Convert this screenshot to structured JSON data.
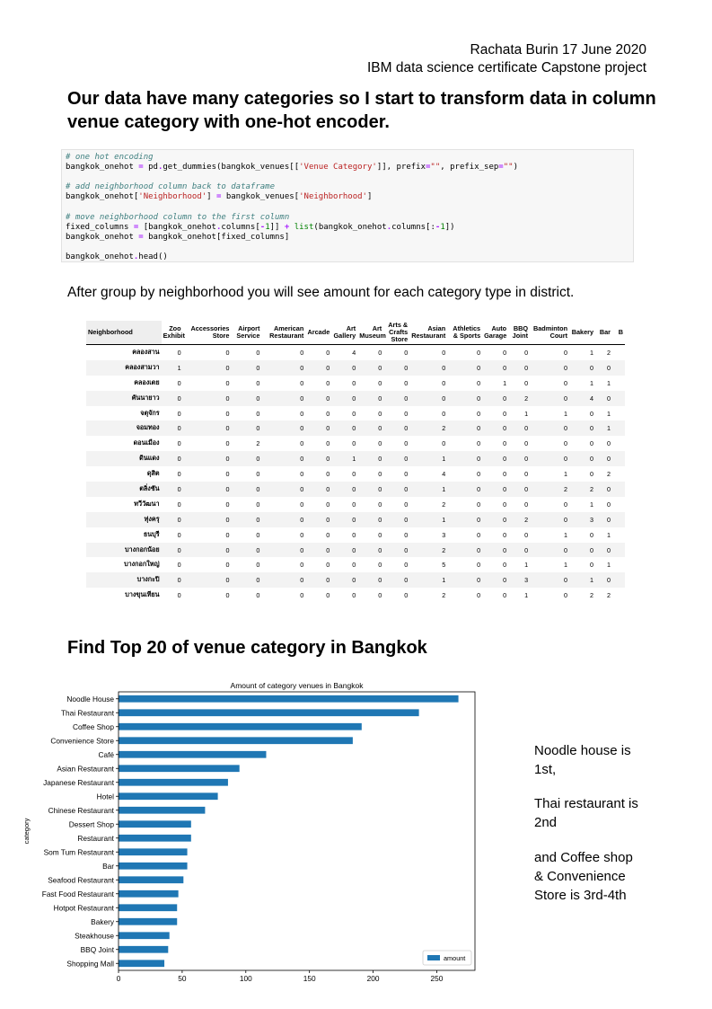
{
  "author": {
    "line1": "Rachata Burin 17 June 2020",
    "line2": "IBM data science certificate Capstone project"
  },
  "heading1": "Our data have many categories so I start to transform data in column venue category with one-hot encoder.",
  "code": {
    "comment1": "# one hot encoding",
    "comment2": "# add neighborhood column back to dataframe",
    "comment3": "# move neighborhood column to the first column"
  },
  "paragraph": "After group by neighborhood  you will see amount  for each category type in district.",
  "table": {
    "columns": [
      "Neighborhood",
      "Zoo Exhibit",
      "Accessories Store",
      "Airport Service",
      "American Restaurant",
      "Arcade",
      "Art Gallery",
      "Art Museum",
      "Arts & Crafts Store",
      "Asian Restaurant",
      "Athletics & Sports",
      "Auto Garage",
      "BBQ Joint",
      "Badminton Court",
      "Bakery",
      "Bar",
      "B"
    ],
    "rows": [
      [
        "คลองสาน",
        "0",
        "0",
        "0",
        "0",
        "0",
        "4",
        "0",
        "0",
        "0",
        "0",
        "0",
        "0",
        "0",
        "1",
        "2"
      ],
      [
        "คลองสามวา",
        "1",
        "0",
        "0",
        "0",
        "0",
        "0",
        "0",
        "0",
        "0",
        "0",
        "0",
        "0",
        "0",
        "0",
        "0"
      ],
      [
        "คลองเตย",
        "0",
        "0",
        "0",
        "0",
        "0",
        "0",
        "0",
        "0",
        "0",
        "0",
        "1",
        "0",
        "0",
        "1",
        "1"
      ],
      [
        "คันนายาว",
        "0",
        "0",
        "0",
        "0",
        "0",
        "0",
        "0",
        "0",
        "0",
        "0",
        "0",
        "2",
        "0",
        "4",
        "0"
      ],
      [
        "จตุจักร",
        "0",
        "0",
        "0",
        "0",
        "0",
        "0",
        "0",
        "0",
        "0",
        "0",
        "0",
        "1",
        "1",
        "0",
        "1"
      ],
      [
        "จอมทอง",
        "0",
        "0",
        "0",
        "0",
        "0",
        "0",
        "0",
        "0",
        "2",
        "0",
        "0",
        "0",
        "0",
        "0",
        "1"
      ],
      [
        "ดอนเมือง",
        "0",
        "0",
        "2",
        "0",
        "0",
        "0",
        "0",
        "0",
        "0",
        "0",
        "0",
        "0",
        "0",
        "0",
        "0"
      ],
      [
        "ดินแดง",
        "0",
        "0",
        "0",
        "0",
        "0",
        "1",
        "0",
        "0",
        "1",
        "0",
        "0",
        "0",
        "0",
        "0",
        "0"
      ],
      [
        "ดุสิต",
        "0",
        "0",
        "0",
        "0",
        "0",
        "0",
        "0",
        "0",
        "4",
        "0",
        "0",
        "0",
        "1",
        "0",
        "2"
      ],
      [
        "ตลิ่งชัน",
        "0",
        "0",
        "0",
        "0",
        "0",
        "0",
        "0",
        "0",
        "1",
        "0",
        "0",
        "0",
        "2",
        "2",
        "0"
      ],
      [
        "ทวีวัฒนา",
        "0",
        "0",
        "0",
        "0",
        "0",
        "0",
        "0",
        "0",
        "2",
        "0",
        "0",
        "0",
        "0",
        "1",
        "0"
      ],
      [
        "ทุ่งครุ",
        "0",
        "0",
        "0",
        "0",
        "0",
        "0",
        "0",
        "0",
        "1",
        "0",
        "0",
        "2",
        "0",
        "3",
        "0"
      ],
      [
        "ธนบุรี",
        "0",
        "0",
        "0",
        "0",
        "0",
        "0",
        "0",
        "0",
        "3",
        "0",
        "0",
        "0",
        "1",
        "0",
        "1"
      ],
      [
        "บางกอกน้อย",
        "0",
        "0",
        "0",
        "0",
        "0",
        "0",
        "0",
        "0",
        "2",
        "0",
        "0",
        "0",
        "0",
        "0",
        "0"
      ],
      [
        "บางกอกใหญ่",
        "0",
        "0",
        "0",
        "0",
        "0",
        "0",
        "0",
        "0",
        "5",
        "0",
        "0",
        "1",
        "1",
        "0",
        "1"
      ],
      [
        "บางกะปิ",
        "0",
        "0",
        "0",
        "0",
        "0",
        "0",
        "0",
        "0",
        "1",
        "0",
        "0",
        "3",
        "0",
        "1",
        "0"
      ],
      [
        "บางขุนเทียน",
        "0",
        "0",
        "0",
        "0",
        "0",
        "0",
        "0",
        "0",
        "2",
        "0",
        "0",
        "1",
        "0",
        "2",
        "2"
      ]
    ]
  },
  "heading2": "Find Top 20 of venue category in Bangkok",
  "chart_data": {
    "type": "bar",
    "orientation": "horizontal",
    "title": "Amount of category venues in Bangkok",
    "xlabel": "",
    "ylabel": "category",
    "categories": [
      "Noodle House",
      "Thai Restaurant",
      "Coffee Shop",
      "Convenience Store",
      "Café",
      "Asian Restaurant",
      "Japanese Restaurant",
      "Hotel",
      "Chinese Restaurant",
      "Dessert Shop",
      "Restaurant",
      "Som Tum Restaurant",
      "Bar",
      "Seafood Restaurant",
      "Fast Food Restaurant",
      "Hotpot Restaurant",
      "Bakery",
      "Steakhouse",
      "BBQ Joint",
      "Shopping Mall"
    ],
    "series": [
      {
        "name": "amount",
        "values": [
          267,
          236,
          191,
          184,
          116,
          95,
          86,
          78,
          68,
          57,
          57,
          54,
          54,
          51,
          47,
          46,
          46,
          40,
          39,
          36
        ]
      }
    ],
    "xlim": [
      0,
      280
    ],
    "xticks": [
      0,
      50,
      100,
      150,
      200,
      250
    ],
    "legend": "lower-right",
    "bar_color": "#1f77b4"
  },
  "notes": {
    "n1": "Noodle  house is 1st,",
    "n2": "Thai  restaurant is 2nd",
    "n3": "and Coffee shop  & Convenience Store  is 3rd-4th"
  }
}
